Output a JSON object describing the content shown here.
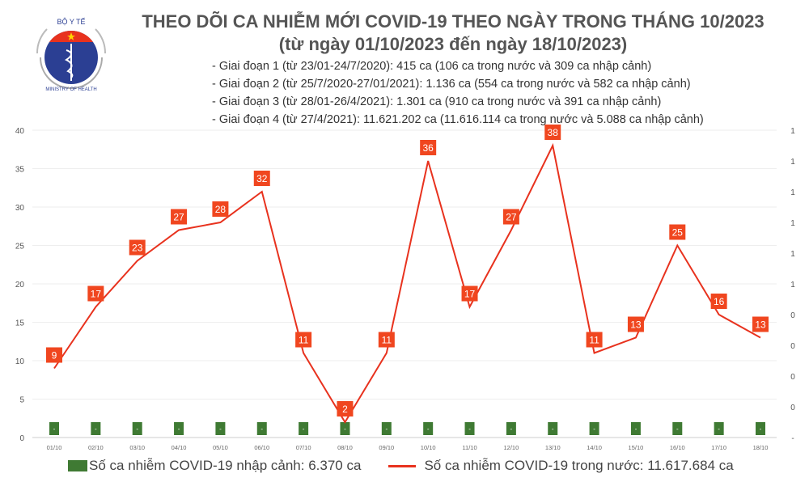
{
  "logo": {
    "text_top": "BỘ Y TẾ",
    "text_bottom": "MINISTRY OF HEALTH"
  },
  "header": {
    "title": "THEO DÕI CA NHIỄM MỚI COVID-19 THEO NGÀY TRONG THÁNG 10/2023",
    "subtitle": "(từ ngày 01/10/2023 đến ngày 18/10/2023)",
    "phases": [
      "- Giai đoạn 1 (từ 23/01-24/7/2020): 415 ca (106 ca trong nước và 309 ca nhập cảnh)",
      "- Giai đoạn 2 (từ 25/7/2020-27/01/2021): 1.136 ca (554 ca trong nước và 582 ca nhập cảnh)",
      "- Giai đoạn 3 (từ 28/01-26/4/2021): 1.301 ca (910 ca trong nước và 391 ca nhập cảnh)",
      "- Giai đoạn 4 (từ 27/4/2021): 11.621.202 ca (11.616.114 ca trong nước và 5.088 ca nhập cảnh)"
    ]
  },
  "chart_data": {
    "type": "bar+line",
    "categories": [
      "01/10",
      "02/10",
      "03/10",
      "04/10",
      "05/10",
      "06/10",
      "07/10",
      "08/10",
      "09/10",
      "10/10",
      "11/10",
      "12/10",
      "13/10",
      "14/10",
      "15/10",
      "16/10",
      "17/10",
      "18/10"
    ],
    "series": [
      {
        "name": "Số ca nhiễm COVID-19 nhập cảnh: 6.370 ca",
        "type": "bar",
        "axis": "right",
        "values": [
          0,
          0,
          0,
          0,
          0,
          0,
          0,
          0,
          0,
          0,
          0,
          0,
          0,
          0,
          0,
          0,
          0,
          0
        ],
        "data_labels": [
          "-",
          "-",
          "-",
          "-",
          "-",
          "-",
          "-",
          "-",
          "-",
          "-",
          "-",
          "-",
          "-",
          "-",
          "-",
          "-",
          "-",
          "-"
        ],
        "color": "#3f7a33"
      },
      {
        "name": "Số ca nhiễm COVID-19 trong nước: 11.617.684 ca",
        "type": "line",
        "axis": "left",
        "values": [
          9,
          17,
          23,
          27,
          28,
          32,
          11,
          2,
          11,
          36,
          17,
          27,
          38,
          11,
          13,
          25,
          16,
          13
        ],
        "color": "#e8321e"
      }
    ],
    "y_left": {
      "ylim": [
        0,
        40
      ],
      "ticks": [
        "0",
        "5",
        "10",
        "15",
        "20",
        "25",
        "30",
        "35",
        "40"
      ]
    },
    "y_right": {
      "ticks": [
        "-",
        "0",
        "0",
        "0",
        "0",
        "1",
        "1",
        "1",
        "1",
        "1",
        "1"
      ]
    },
    "grid": true,
    "legend": "bottom"
  }
}
